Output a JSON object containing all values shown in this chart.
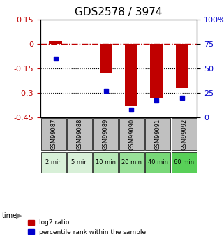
{
  "title": "GDS2578 / 3974",
  "samples": [
    "GSM99087",
    "GSM99088",
    "GSM99089",
    "GSM99090",
    "GSM99091",
    "GSM99092"
  ],
  "time_labels": [
    "2 min",
    "5 min",
    "10 min",
    "20 min",
    "40 min",
    "60 min"
  ],
  "log2_ratio": [
    0.02,
    0.0,
    -0.175,
    -0.38,
    -0.33,
    -0.27
  ],
  "percentile_rank": [
    60,
    0,
    27,
    8,
    17,
    20
  ],
  "bar_color": "#c00000",
  "dot_color": "#0000cc",
  "ylim_left": [
    -0.45,
    0.15
  ],
  "ylim_right": [
    0,
    100
  ],
  "yticks_left": [
    0.15,
    0,
    -0.15,
    -0.3,
    -0.45
  ],
  "yticks_right": [
    100,
    75,
    50,
    25,
    0
  ],
  "hline_y": 0,
  "dotted_lines": [
    -0.15,
    -0.3
  ],
  "bar_width": 0.5,
  "sample_box_color": "#c0c0c0",
  "time_box_colors": [
    "#d8f0d8",
    "#d8f0d8",
    "#b8e8b8",
    "#98e098",
    "#78d878",
    "#58d058"
  ],
  "legend_items": [
    "log2 ratio",
    "percentile rank within the sample"
  ],
  "legend_colors": [
    "#c00000",
    "#0000cc"
  ],
  "title_fontsize": 11,
  "tick_fontsize": 8,
  "label_fontsize": 7.5
}
